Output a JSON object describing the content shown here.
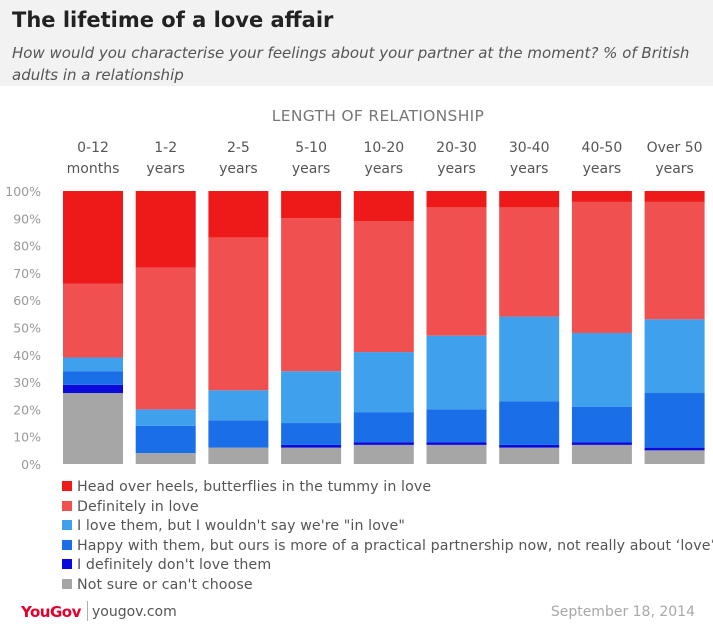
{
  "header": {
    "title": "The lifetime of a love affair",
    "subtitle": "How would you characterise your feelings about your partner at the moment? % of British adults in a relationship"
  },
  "footer": {
    "logo": "YouGov",
    "url": "yougov.com",
    "date": "September 18, 2014"
  },
  "chart_data": {
    "type": "bar",
    "stacked": true,
    "orientation": "vertical",
    "title": "The lifetime of a love affair",
    "subtitle": "How would you characterise your feelings about your partner at the moment? % of British adults in a relationship",
    "xlabel": "LENGTH OF RELATIONSHIP",
    "ylabel": "",
    "ylim": [
      0,
      100
    ],
    "yticks": [
      "0%",
      "10%",
      "20%",
      "30%",
      "40%",
      "50%",
      "60%",
      "70%",
      "80%",
      "90%",
      "100%"
    ],
    "grid": false,
    "legend_position": "bottom",
    "categories": [
      [
        "0-12",
        "months"
      ],
      [
        "1-2",
        "years"
      ],
      [
        "2-5",
        "years"
      ],
      [
        "5-10",
        "years"
      ],
      [
        "10-20",
        "years"
      ],
      [
        "20-30",
        "years"
      ],
      [
        "30-40",
        "years"
      ],
      [
        "40-50",
        "years"
      ],
      [
        "Over 50",
        "years"
      ]
    ],
    "series": [
      {
        "name": "Not sure or can't choose",
        "color": "#a6a6a6",
        "values": [
          26,
          4,
          6,
          6,
          7,
          7,
          6,
          7,
          5
        ]
      },
      {
        "name": "I definitely don't love them",
        "color": "#0a0adc",
        "values": [
          3,
          0,
          0,
          1,
          1,
          1,
          1,
          1,
          1
        ]
      },
      {
        "name": "Happy with them, but ours is more of a practical partnership now, not really about ‘love’",
        "color": "#1a6ee8",
        "values": [
          5,
          10,
          10,
          8,
          11,
          12,
          16,
          13,
          20
        ]
      },
      {
        "name": "I love them, but I wouldn't say we're \"in love\"",
        "color": "#3fa0ee",
        "values": [
          5,
          6,
          11,
          19,
          22,
          27,
          31,
          27,
          27
        ]
      },
      {
        "name": "Definitely in love",
        "color": "#f05050",
        "values": [
          27,
          52,
          56,
          56,
          48,
          47,
          40,
          48,
          43
        ]
      },
      {
        "name": "Head over heels, butterflies in the tummy in love",
        "color": "#ee1a1a",
        "values": [
          34,
          28,
          17,
          10,
          11,
          6,
          6,
          4,
          4
        ]
      }
    ]
  }
}
